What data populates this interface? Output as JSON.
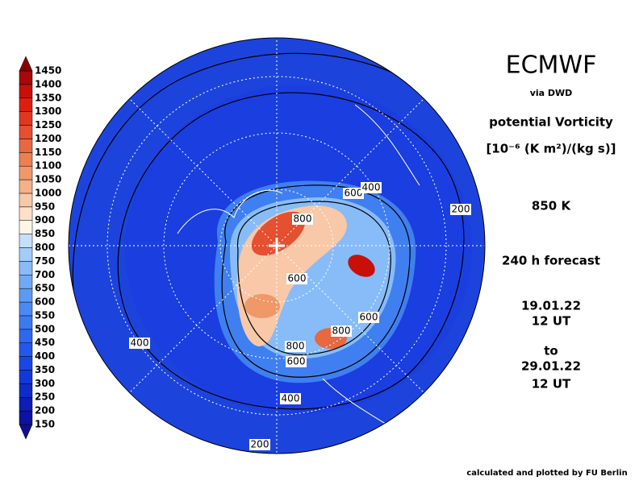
{
  "colorbar": {
    "labels": [
      150,
      200,
      250,
      300,
      350,
      400,
      450,
      500,
      550,
      600,
      650,
      700,
      750,
      800,
      850,
      900,
      950,
      1000,
      1050,
      1100,
      1150,
      1200,
      1250,
      1300,
      1350,
      1400,
      1450
    ],
    "colors": [
      "#10108c",
      "#0a14a0",
      "#0c1eb4",
      "#0f2cc8",
      "#1238d8",
      "#1a46e6",
      "#2458ea",
      "#2e68ee",
      "#3c7af0",
      "#4a8af2",
      "#5c9af4",
      "#70aaf6",
      "#88bcf8",
      "#a2ccfa",
      "#c4e0fc",
      "#fff5e6",
      "#fce0c8",
      "#f8c8a8",
      "#f4b088",
      "#f09868",
      "#ec8050",
      "#e86840",
      "#e45030",
      "#e03820",
      "#dc2010",
      "#c81008",
      "#a80808",
      "#880000"
    ]
  },
  "header": {
    "title": "ECMWF",
    "source": "via DWD",
    "variable": "potential Vorticity",
    "units": "[10⁻⁶ (K m²)/(kg s)]",
    "level": "850 K",
    "forecast": "240 h forecast",
    "start_date": "19.01.22",
    "start_time": "12 UT",
    "to": "to",
    "end_date": "29.01.22",
    "end_time": "12 UT"
  },
  "contour_labels": [
    "600",
    "400",
    "200",
    "800",
    "600",
    "600",
    "800",
    "800",
    "600",
    "400",
    "400",
    "200"
  ],
  "footer": "calculated and plotted by FU Berlin"
}
